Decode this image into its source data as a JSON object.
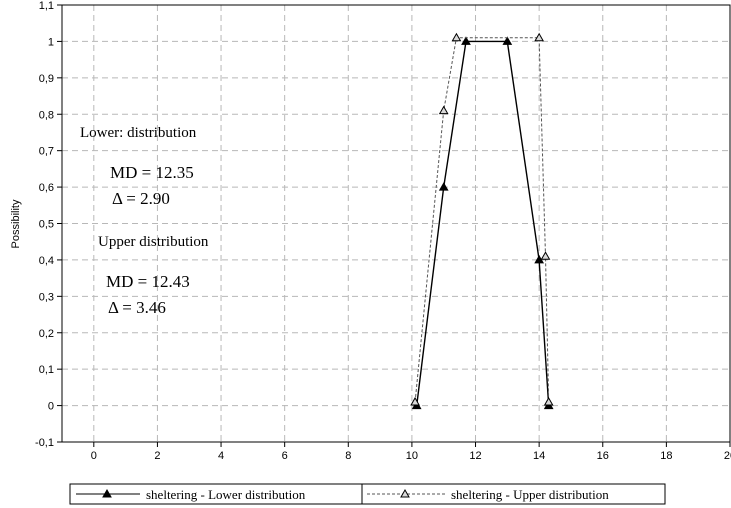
{
  "chart_data": {
    "type": "line",
    "title": "",
    "xlabel": "",
    "ylabel": "Possibility",
    "xlim": [
      -1,
      20
    ],
    "ylim": [
      -0.1,
      1.1
    ],
    "x_ticks": [
      0,
      2,
      4,
      6,
      8,
      10,
      12,
      14,
      16,
      18,
      20
    ],
    "x_tick_labels": [
      "0",
      "2",
      "4",
      "6",
      "8",
      "10",
      "12",
      "14",
      "16",
      "18",
      "20"
    ],
    "y_ticks": [
      -0.1,
      0,
      0.1,
      0.2,
      0.3,
      0.4,
      0.5,
      0.6,
      0.7,
      0.8,
      0.9,
      1,
      1.1
    ],
    "y_tick_labels": [
      "-0,1",
      "0",
      "0,1",
      "0,2",
      "0,3",
      "0,4",
      "0,5",
      "0,6",
      "0,7",
      "0,8",
      "0,9",
      "1",
      "1,1"
    ],
    "grid": true,
    "legend_position": "bottom",
    "series": [
      {
        "name": "sheltering - Lower distribution",
        "style": "solid",
        "marker": "filled-triangle",
        "color": "#000000",
        "x": [
          10.15,
          11.0,
          11.7,
          13.0,
          14.0,
          14.3
        ],
        "y": [
          0.0,
          0.6,
          1.0,
          1.0,
          0.4,
          0.0
        ]
      },
      {
        "name": "sheltering - Upper distribution",
        "style": "dashed",
        "marker": "hollow-triangle",
        "color": "#555555",
        "x": [
          10.1,
          11.0,
          11.4,
          14.0,
          14.2,
          14.3
        ],
        "y": [
          0.01,
          0.81,
          1.01,
          1.01,
          0.41,
          0.01
        ]
      }
    ],
    "annotations": {
      "lower_title": "Lower: distribution",
      "lower_md": "MD = 12.35",
      "lower_delta": "Δ   = 2.90",
      "upper_title": "Upper distribution",
      "upper_md": "MD = 12.43",
      "upper_delta": "Δ   = 3.46"
    }
  }
}
